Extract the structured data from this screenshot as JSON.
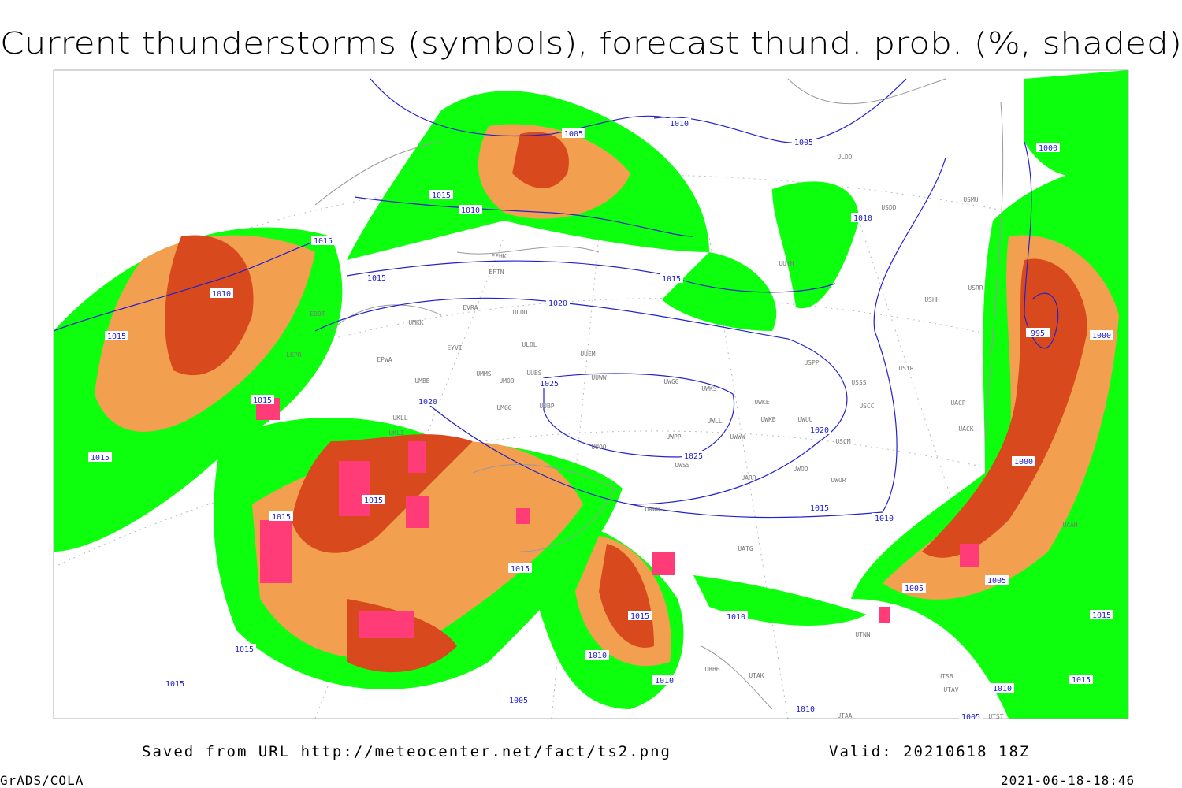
{
  "header": {
    "title": "Current thunderstorms (symbols), forecast thund. prob. (%, shaded)"
  },
  "map": {
    "isobar_labels": [
      1005,
      1015,
      1010,
      1015,
      1010,
      1015,
      1015,
      1020,
      1015,
      1005,
      1010,
      1010,
      1025,
      1020,
      1015,
      1015,
      1015,
      1015,
      1015,
      1025,
      1020,
      1015,
      1010,
      1005,
      1005,
      995,
      1000,
      1000,
      1000,
      1015,
      1010,
      1010,
      1005,
      1015,
      1015,
      1010,
      1010,
      1005,
      1010,
      1015,
      1015
    ],
    "stations": [
      "ULDD",
      "USDD",
      "USMU",
      "UUYH",
      "USRR",
      "USHH",
      "USPP",
      "USTR",
      "USSS",
      "USCC",
      "UACP",
      "UACK",
      "UUEM",
      "ULOL",
      "ULOD",
      "EFHK",
      "EFTN",
      "EVRA",
      "UMKK",
      "EYVI",
      "EPWA",
      "UMMS",
      "UMOO",
      "UUBS",
      "UUWW",
      "UWGG",
      "UWKS",
      "UWKE",
      "UWKB",
      "UWUU",
      "UWLL",
      "UWWW",
      "UWPP",
      "USCM",
      "UUOO",
      "UWSS",
      "UARR",
      "UWOO",
      "UWOR",
      "URWW",
      "UATG",
      "UTNN",
      "UBBB",
      "UTAK",
      "UTSB",
      "UTAV",
      "UTAA",
      "UTST",
      "EDDT",
      "LKPR",
      "UKLL",
      "UKLI",
      "UMBB",
      "UMGG",
      "UUBP",
      "UAAH"
    ]
  },
  "footer": {
    "source": "Saved from URL http://meteocenter.net/fact/ts2.png",
    "valid": "Valid: 20210618 18Z",
    "software": "GrADS/COLA",
    "timestamp": "2021-06-18-18:46"
  }
}
